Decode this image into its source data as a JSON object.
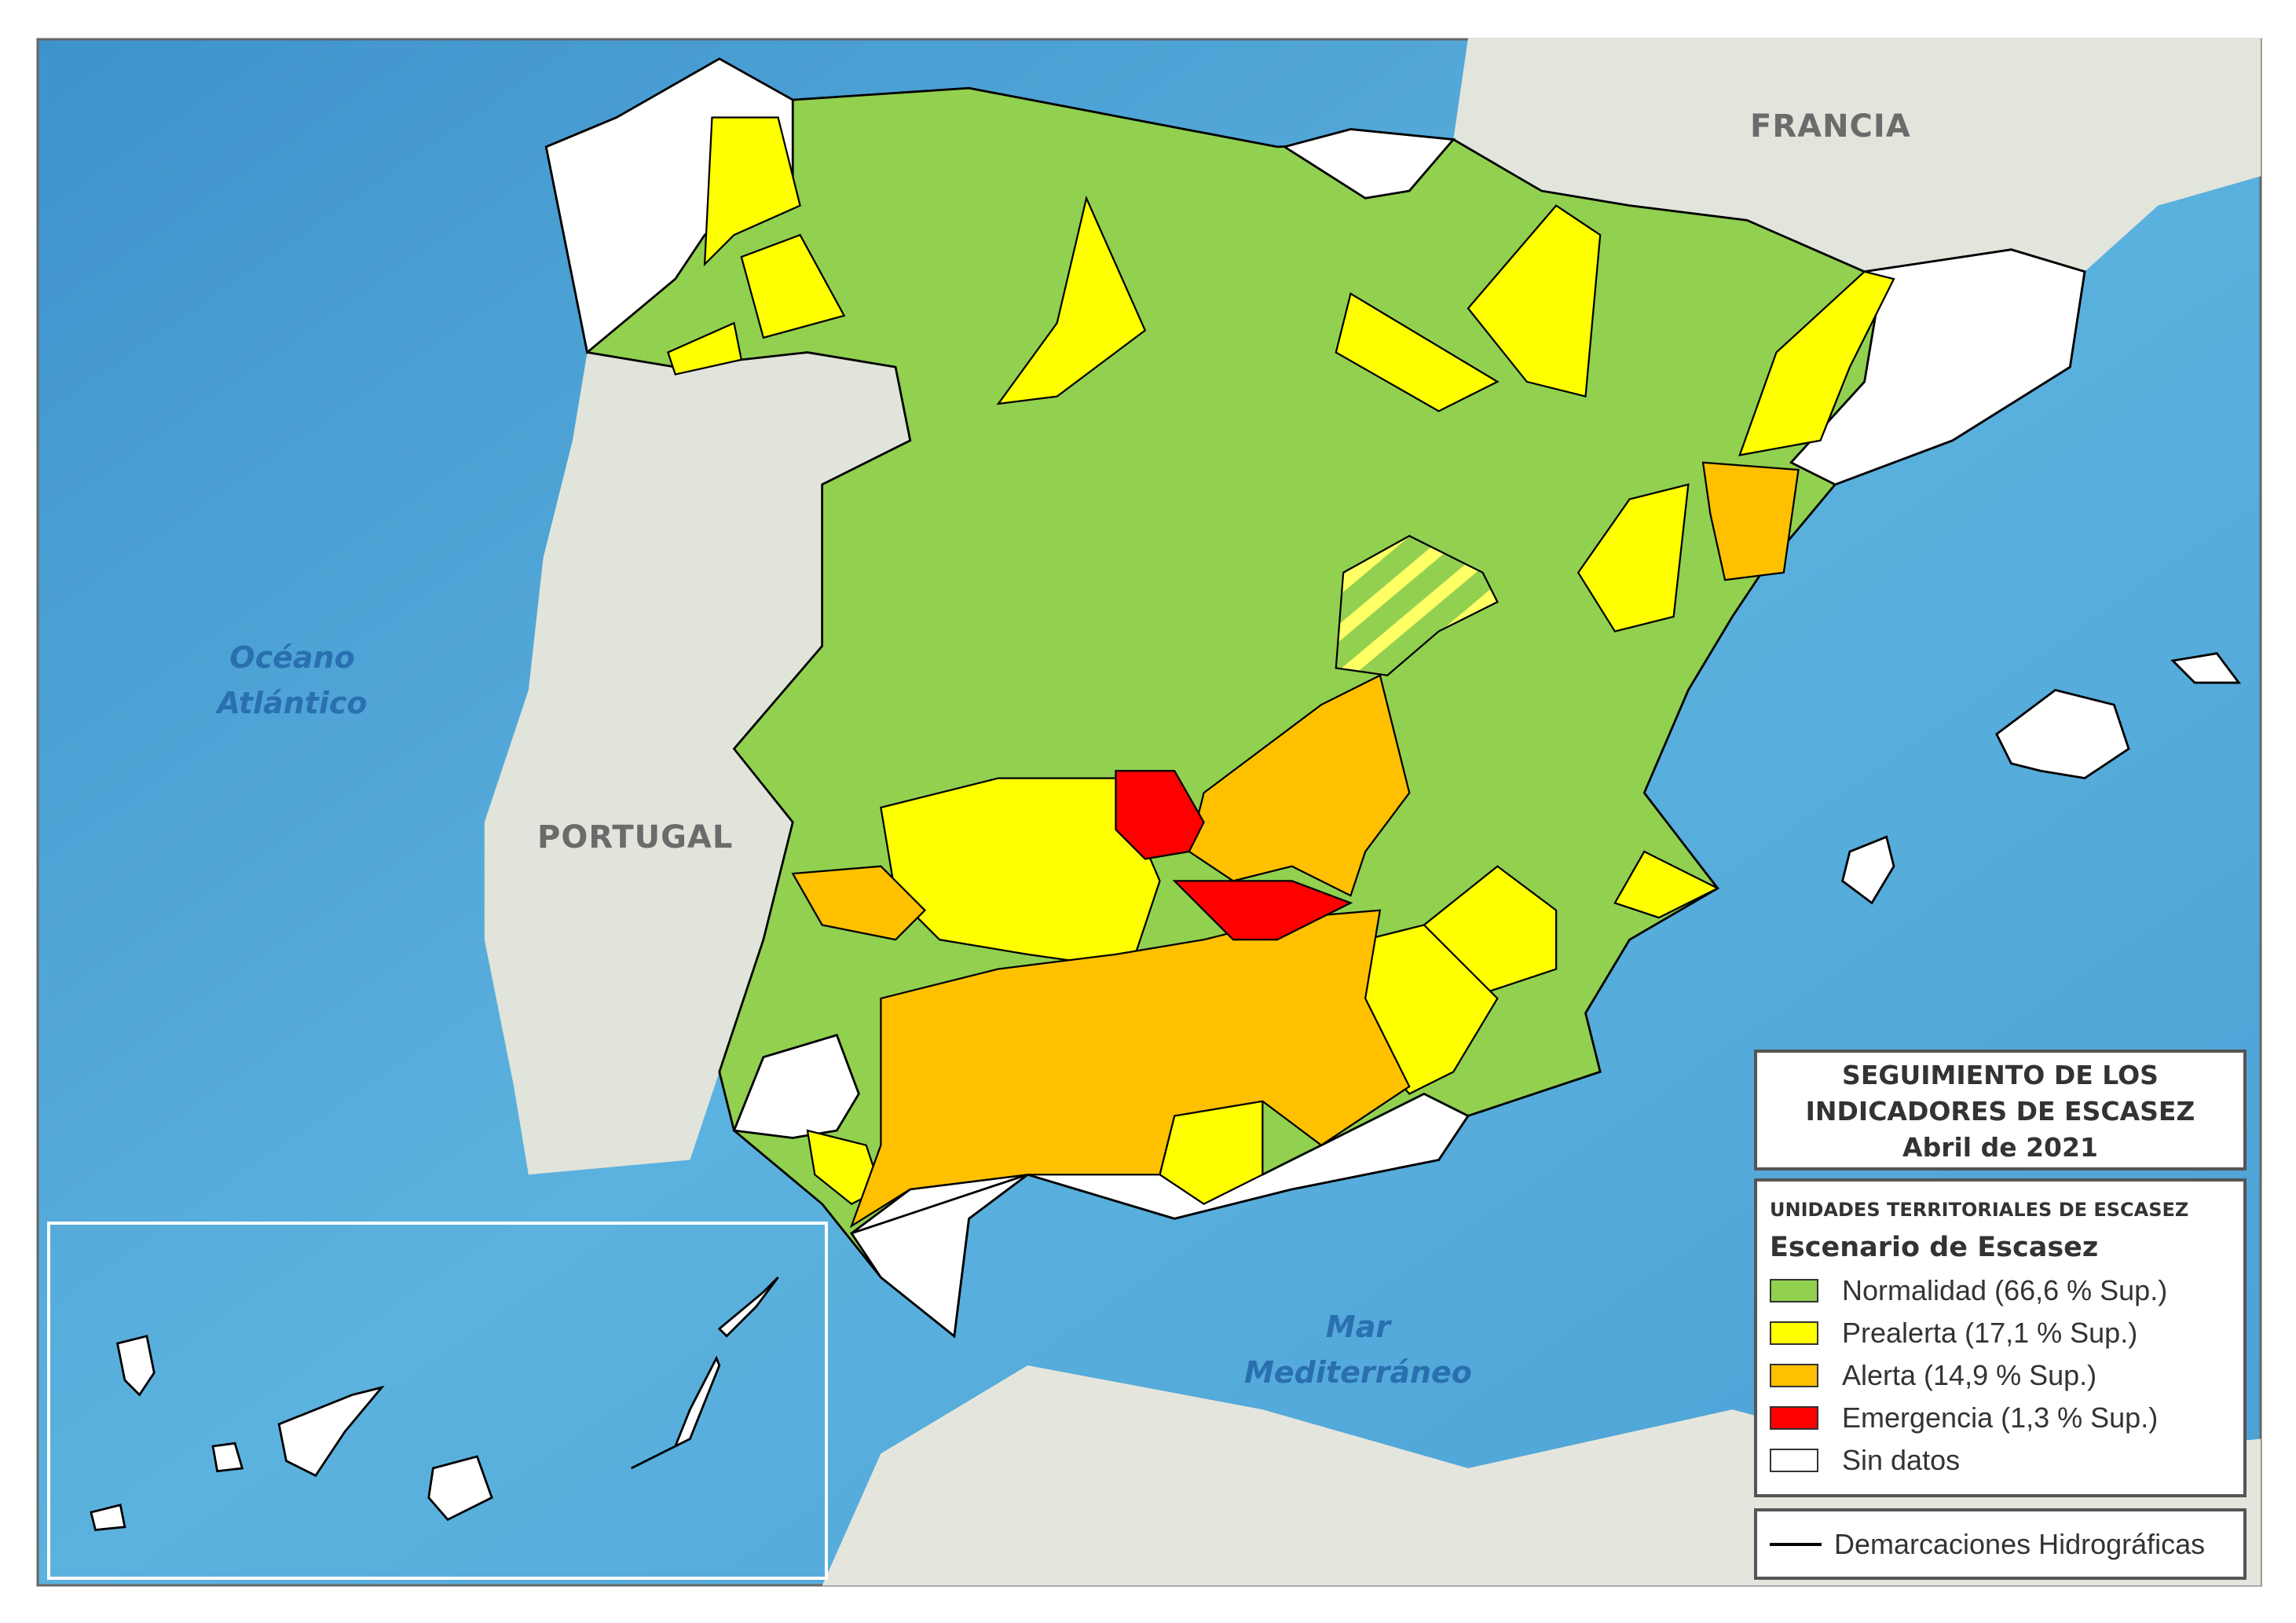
{
  "map_labels": {
    "france": "FRANCIA",
    "portugal": "PORTUGAL",
    "atlantic_line1": "Océano",
    "atlantic_line2": "Atlántico",
    "med_line1": "Mar",
    "med_line2": "Mediterráneo"
  },
  "title": {
    "line1": "SEGUIMIENTO DE LOS",
    "line2": "INDICADORES DE ESCASEZ",
    "line3": "Abril de 2021"
  },
  "legend": {
    "subtitle": "UNIDADES TERRITORIALES DE ESCASEZ",
    "heading": "Escenario de Escasez",
    "items": [
      {
        "label": "Normalidad (66,6 % Sup.)",
        "color": "#92d050"
      },
      {
        "label": "Prealerta (17,1 % Sup.)",
        "color": "#ffff00"
      },
      {
        "label": "Alerta (14,9 % Sup.)",
        "color": "#ffc000"
      },
      {
        "label": "Emergencia (1,3 % Sup.)",
        "color": "#ff0000"
      },
      {
        "label": "Sin datos",
        "color": "#ffffff"
      }
    ],
    "line_item": {
      "label": "Demarcaciones Hidrográficas",
      "color": "#000000"
    }
  },
  "colors": {
    "sea": "#4fa3d6",
    "land_other": "#e2e5dc"
  }
}
